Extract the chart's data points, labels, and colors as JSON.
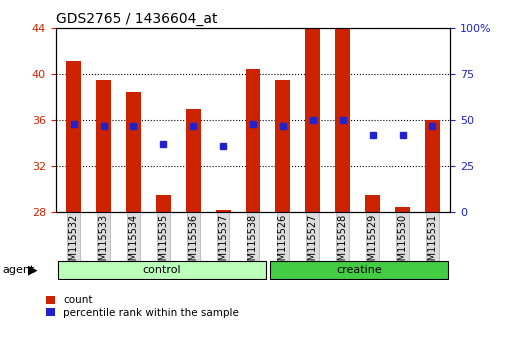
{
  "title": "GDS2765 / 1436604_at",
  "samples": [
    "GSM115532",
    "GSM115533",
    "GSM115534",
    "GSM115535",
    "GSM115536",
    "GSM115537",
    "GSM115538",
    "GSM115526",
    "GSM115527",
    "GSM115528",
    "GSM115529",
    "GSM115530",
    "GSM115531"
  ],
  "count_values": [
    41.2,
    39.5,
    38.5,
    29.5,
    37.0,
    28.2,
    40.5,
    39.5,
    44.0,
    44.0,
    29.5,
    28.5,
    36.0
  ],
  "percentile_values": [
    48,
    47,
    47,
    37,
    47,
    36,
    48,
    47,
    50,
    50,
    42,
    42,
    47
  ],
  "ylim_left": [
    28,
    44
  ],
  "ylim_right": [
    0,
    100
  ],
  "yticks_left": [
    28,
    32,
    36,
    40,
    44
  ],
  "yticks_right": [
    0,
    25,
    50,
    75,
    100
  ],
  "ytick_labels_right": [
    "0",
    "25",
    "50",
    "75",
    "100%"
  ],
  "bar_color": "#cc2200",
  "dot_color": "#2222cc",
  "bar_width": 0.5,
  "control_color": "#bbffbb",
  "creatine_color": "#44cc44",
  "legend_count_label": "count",
  "legend_percentile_label": "percentile rank within the sample",
  "base_value": 28,
  "n_control": 7,
  "n_creatine": 6
}
